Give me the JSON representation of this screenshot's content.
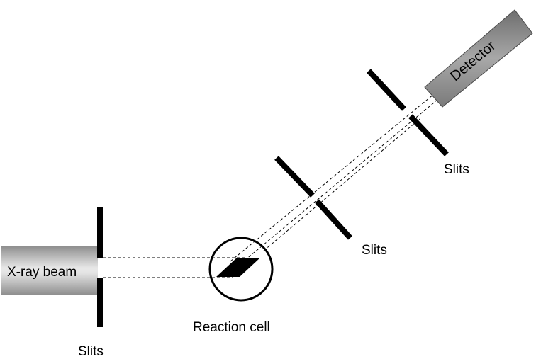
{
  "diagram": {
    "labels": {
      "xray_beam": "X-ray beam",
      "slits_1": "Slits",
      "reaction_cell": "Reaction cell",
      "slits_2": "Slits",
      "slits_3": "Slits",
      "detector": "Detector"
    },
    "colors": {
      "line": "#000000",
      "background": "#ffffff",
      "beam_gradient_light": "#e4e4e4",
      "beam_gradient_dark": "#8c8c8c",
      "detector_body": "#9a9a9a",
      "detector_edge": "#4a4a4a"
    }
  }
}
